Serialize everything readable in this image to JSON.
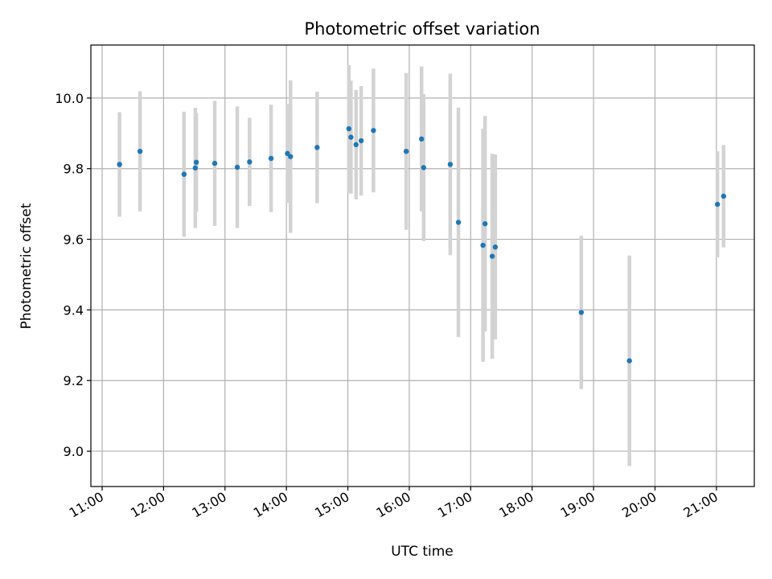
{
  "chart_data": {
    "type": "scatter",
    "title": "Photometric offset variation",
    "xlabel": "UTC time",
    "ylabel": "Photometric offset",
    "x_tick_labels": [
      "11:00",
      "12:00",
      "13:00",
      "14:00",
      "15:00",
      "16:00",
      "17:00",
      "18:00",
      "19:00",
      "20:00",
      "21:00"
    ],
    "y_tick_labels": [
      "9.0",
      "9.2",
      "9.4",
      "9.6",
      "9.8",
      "10.0"
    ],
    "xlim": [
      "10:49",
      "21:37"
    ],
    "ylim": [
      8.9,
      10.15
    ],
    "grid": true,
    "colors": {
      "points": "#1f77b4",
      "error_bars": "#d3d3d3",
      "grid": "#b0b0b0"
    },
    "points": [
      {
        "t": "11:17",
        "y": 9.812,
        "err": 0.148
      },
      {
        "t": "11:37",
        "y": 9.849,
        "err": 0.17
      },
      {
        "t": "12:20",
        "y": 9.784,
        "err": 0.177
      },
      {
        "t": "12:31",
        "y": 9.802,
        "err": 0.17
      },
      {
        "t": "12:32",
        "y": 9.818,
        "err": 0.14
      },
      {
        "t": "12:50",
        "y": 9.815,
        "err": 0.177
      },
      {
        "t": "13:12",
        "y": 9.804,
        "err": 0.172
      },
      {
        "t": "13:24",
        "y": 9.819,
        "err": 0.125
      },
      {
        "t": "13:45",
        "y": 9.829,
        "err": 0.152
      },
      {
        "t": "14:01",
        "y": 9.843,
        "err": 0.14
      },
      {
        "t": "14:04",
        "y": 9.834,
        "err": 0.216
      },
      {
        "t": "14:30",
        "y": 9.86,
        "err": 0.158
      },
      {
        "t": "15:01",
        "y": 9.913,
        "err": 0.18
      },
      {
        "t": "15:03",
        "y": 9.889,
        "err": 0.16
      },
      {
        "t": "15:08",
        "y": 9.868,
        "err": 0.155
      },
      {
        "t": "15:13",
        "y": 9.879,
        "err": 0.155
      },
      {
        "t": "15:25",
        "y": 9.908,
        "err": 0.175
      },
      {
        "t": "15:57",
        "y": 9.849,
        "err": 0.222
      },
      {
        "t": "16:12",
        "y": 9.884,
        "err": 0.205
      },
      {
        "t": "16:14",
        "y": 9.803,
        "err": 0.208
      },
      {
        "t": "16:40",
        "y": 9.812,
        "err": 0.257
      },
      {
        "t": "16:48",
        "y": 9.648,
        "err": 0.325
      },
      {
        "t": "17:12",
        "y": 9.583,
        "err": 0.33
      },
      {
        "t": "17:14",
        "y": 9.644,
        "err": 0.305
      },
      {
        "t": "17:21",
        "y": 9.552,
        "err": 0.29
      },
      {
        "t": "17:24",
        "y": 9.578,
        "err": 0.262
      },
      {
        "t": "18:48",
        "y": 9.393,
        "err": 0.217
      },
      {
        "t": "19:35",
        "y": 9.256,
        "err": 0.298
      },
      {
        "t": "21:01",
        "y": 9.699,
        "err": 0.15
      },
      {
        "t": "21:07",
        "y": 9.722,
        "err": 0.145
      }
    ]
  }
}
